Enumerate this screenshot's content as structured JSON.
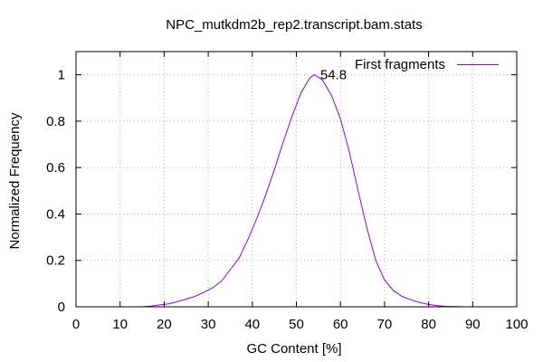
{
  "chart_data": {
    "type": "line",
    "title": "NPC_mutkdm2b_rep2.transcript.bam.stats",
    "xlabel": "GC Content [%]",
    "ylabel": "Normalized Frequency",
    "xlim": [
      0,
      100
    ],
    "ylim": [
      0,
      1.1
    ],
    "xticks": [
      0,
      10,
      20,
      30,
      40,
      50,
      60,
      70,
      80,
      90,
      100
    ],
    "xtick_labels": [
      "0",
      "10",
      "20",
      "30",
      "40",
      "50",
      "60",
      "70",
      "80",
      "90",
      "100"
    ],
    "yticks": [
      0,
      0.2,
      0.4,
      0.6,
      0.8,
      1
    ],
    "ytick_labels": [
      "0",
      "0.2",
      "0.4",
      "0.6",
      "0.8",
      "1"
    ],
    "grid": true,
    "legend_position": "top-right",
    "series": [
      {
        "name": "First fragments",
        "color": "#9400d3",
        "x": [
          15,
          17,
          19,
          21,
          23,
          25,
          27,
          29,
          31,
          33,
          35,
          37,
          39,
          41,
          43,
          45,
          47,
          49,
          51,
          53,
          54,
          55,
          56,
          58,
          60,
          62,
          64,
          66,
          68,
          70,
          72,
          74,
          76,
          78,
          80,
          82,
          84,
          86,
          88
        ],
        "y": [
          0.0,
          0.003,
          0.008,
          0.013,
          0.022,
          0.033,
          0.045,
          0.062,
          0.082,
          0.11,
          0.16,
          0.21,
          0.29,
          0.38,
          0.48,
          0.59,
          0.71,
          0.82,
          0.92,
          0.985,
          1.0,
          0.99,
          0.975,
          0.91,
          0.81,
          0.67,
          0.5,
          0.34,
          0.2,
          0.115,
          0.07,
          0.045,
          0.03,
          0.018,
          0.01,
          0.005,
          0.002,
          0.001,
          0.0
        ]
      }
    ],
    "annotations": [
      {
        "text": "54.8",
        "x": 54.8,
        "y": 1.0
      }
    ]
  }
}
